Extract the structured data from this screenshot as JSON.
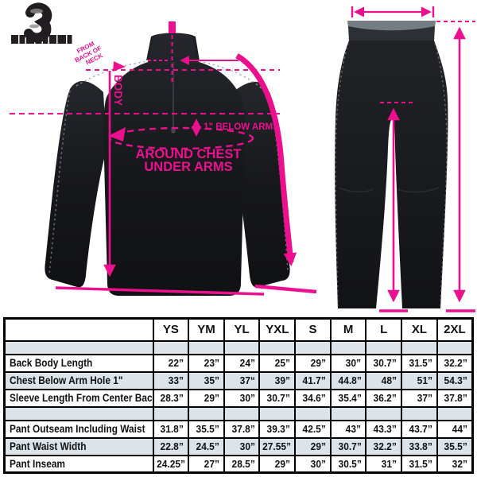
{
  "accent_pink": "#ec108e",
  "brand": {
    "logo_icon": "mascot-logo"
  },
  "jacket_diagram": {
    "neck_note_line1": "FROM",
    "neck_note_line2": "BACK OF",
    "neck_note_line3": "NECK",
    "body_label": "BODY",
    "below_arms_label": "1” BELOW ARMS",
    "around_chest_line1": "AROUND CHEST",
    "around_chest_line2": "UNDER ARMS"
  },
  "size_table": {
    "columns": [
      "YS",
      "YM",
      "YL",
      "YXL",
      "S",
      "M",
      "L",
      "XL",
      "2XL"
    ],
    "rows": [
      {
        "type": "spacer",
        "shaded": true
      },
      {
        "type": "data",
        "shaded": false,
        "label": "Back Body Length",
        "values": [
          "22”",
          "23”",
          "24”",
          "25”",
          "29”",
          "30”",
          "30.7”",
          "31.5”",
          "32.2”"
        ]
      },
      {
        "type": "data",
        "shaded": true,
        "label": "Chest Below Arm Hole 1\"",
        "values": [
          "33”",
          "35”",
          "37“",
          "39”",
          "41.7”",
          "44.8”",
          "48”",
          "51”",
          "54.3”"
        ]
      },
      {
        "type": "data",
        "shaded": false,
        "label": "Sleeve Length From Center Back",
        "values": [
          "28.3”",
          "29”",
          "30”",
          "30.7”",
          "34.6”",
          "35.4”",
          "36.2”",
          "37”",
          "37.8”"
        ]
      },
      {
        "type": "spacer",
        "shaded": true
      },
      {
        "type": "data",
        "shaded": false,
        "label": "Pant Outseam Including Waist",
        "values": [
          "31.8”",
          "35.5”",
          "37.8”",
          "39.3”",
          "42.5”",
          "43”",
          "43.3”",
          "43.7”",
          "44”"
        ]
      },
      {
        "type": "data",
        "shaded": true,
        "label": "Pant Waist Width",
        "values": [
          "22.8”",
          "24.5”",
          "30”",
          "27.55”",
          "29”",
          "30.7”",
          "32.2”",
          "33.8”",
          "35.5”"
        ]
      },
      {
        "type": "data",
        "shaded": false,
        "label": "Pant Inseam",
        "values": [
          "24.25”",
          "27”",
          "28.5”",
          "29”",
          "30”",
          "30.5”",
          "31”",
          "31.5”",
          "32”"
        ]
      }
    ]
  }
}
